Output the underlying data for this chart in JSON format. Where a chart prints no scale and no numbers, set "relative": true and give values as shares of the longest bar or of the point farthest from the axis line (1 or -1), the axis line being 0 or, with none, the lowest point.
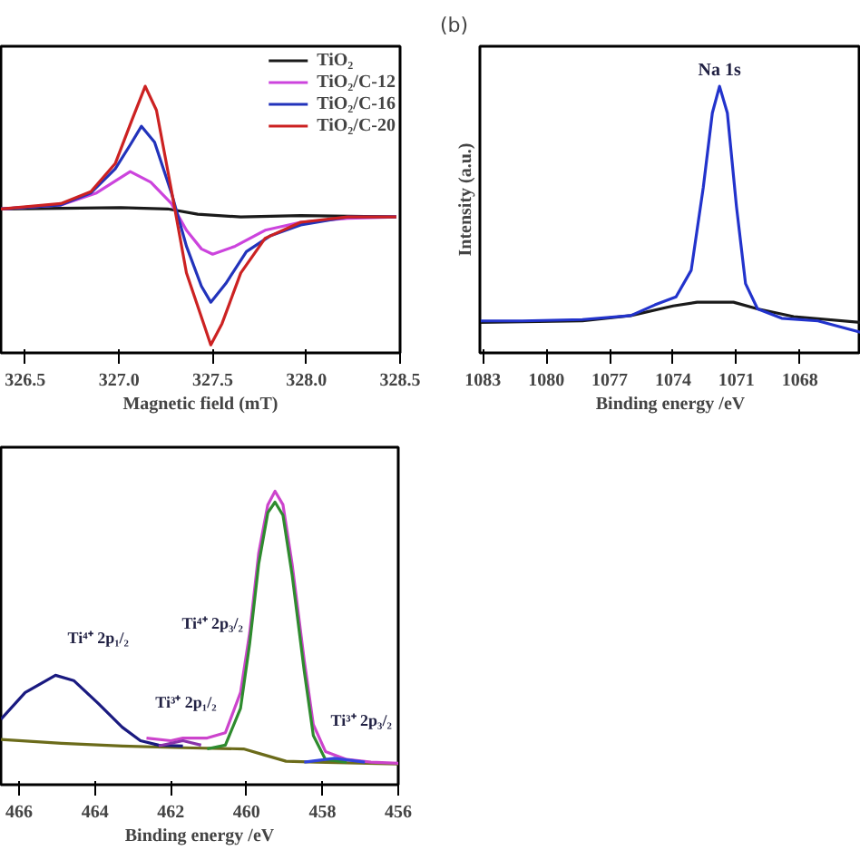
{
  "chart_data": [
    {
      "type": "line",
      "relative": true,
      "xlabel": "Magnetic field (mT)",
      "xlim": [
        326.37,
        328.5
      ],
      "xticks": [
        {
          "value": 326.5,
          "label": "326.5"
        },
        {
          "value": 327.0,
          "label": "327.0"
        },
        {
          "value": 327.5,
          "label": "327.5"
        },
        {
          "value": 328.0,
          "label": "328.0"
        },
        {
          "value": 328.5,
          "label": "328.5"
        }
      ],
      "grid": false,
      "legend": "top right",
      "line_style": "solid",
      "marker": "none",
      "series": [
        {
          "name": "TiO₂",
          "color": "#1a1a1a",
          "x": [
            326.37,
            327.01,
            327.26,
            327.42,
            327.65,
            327.97,
            328.48
          ],
          "values": [
            0.54,
            0.545,
            0.54,
            0.52,
            0.51,
            0.515,
            0.51
          ]
        },
        {
          "name": "TiO₂/C-12",
          "color": "#cc44dd",
          "x": [
            326.37,
            326.69,
            326.88,
            327.06,
            327.17,
            327.28,
            327.36,
            327.44,
            327.5,
            327.62,
            327.78,
            327.97,
            328.22,
            328.48
          ],
          "values": [
            0.54,
            0.555,
            0.6,
            0.68,
            0.64,
            0.56,
            0.46,
            0.39,
            0.37,
            0.4,
            0.46,
            0.49,
            0.505,
            0.51
          ]
        },
        {
          "name": "TiO₂/C-16",
          "color": "#2233bb",
          "x": [
            326.37,
            326.69,
            326.85,
            326.98,
            327.06,
            327.12,
            327.19,
            327.28,
            327.36,
            327.44,
            327.49,
            327.57,
            327.68,
            327.81,
            327.97,
            328.22,
            328.48
          ],
          "values": [
            0.54,
            0.555,
            0.6,
            0.69,
            0.78,
            0.85,
            0.79,
            0.6,
            0.4,
            0.25,
            0.19,
            0.26,
            0.38,
            0.44,
            0.48,
            0.51,
            0.51
          ]
        },
        {
          "name": "TiO₂/C-20",
          "color": "#cc2222",
          "x": [
            326.37,
            326.69,
            326.85,
            326.98,
            327.07,
            327.14,
            327.2,
            327.28,
            327.36,
            327.46,
            327.49,
            327.55,
            327.65,
            327.78,
            327.97,
            328.22,
            328.48
          ],
          "values": [
            0.54,
            0.56,
            0.605,
            0.71,
            0.875,
            1.0,
            0.91,
            0.61,
            0.3,
            0.093,
            0.03,
            0.11,
            0.3,
            0.43,
            0.49,
            0.51,
            0.51
          ]
        }
      ]
    },
    {
      "type": "line",
      "relative": true,
      "xlabel": "Binding energy /eV",
      "ylabel": "Intensity (a.u.)",
      "xlim": [
        1083.14,
        1065.11
      ],
      "xticks": [
        1083,
        1080,
        1077,
        1074,
        1071,
        1068
      ],
      "grid": false,
      "line_style": "solid",
      "marker": "none",
      "annotations": [
        "(b)",
        {
          "text": "Na 1s",
          "x": 1071.8,
          "y": 1.0
        }
      ],
      "series": [
        {
          "color": "#1a1a1a",
          "x": [
            1083.14,
            1078.29,
            1076.0,
            1074.0,
            1072.86,
            1071.14,
            1070.0,
            1068.29,
            1065.11
          ],
          "values": [
            0.114,
            0.12,
            0.14,
            0.176,
            0.19,
            0.19,
            0.165,
            0.136,
            0.114
          ]
        },
        {
          "color": "#2233cc",
          "x": [
            1083.14,
            1081.14,
            1078.29,
            1076.0,
            1074.86,
            1073.86,
            1073.14,
            1072.57,
            1072.14,
            1071.8,
            1071.43,
            1071.0,
            1070.57,
            1070.0,
            1068.86,
            1067.14,
            1065.11
          ],
          "values": [
            0.12,
            0.12,
            0.125,
            0.14,
            0.18,
            0.21,
            0.31,
            0.62,
            0.9,
            1.0,
            0.9,
            0.55,
            0.26,
            0.165,
            0.13,
            0.12,
            0.077
          ]
        }
      ]
    },
    {
      "type": "line",
      "relative": true,
      "xlabel": "Binding energy /eV",
      "xlim": [
        466.48,
        456.0
      ],
      "xticks": [
        466,
        464,
        462,
        460,
        458,
        456
      ],
      "grid": false,
      "line_style": "solid",
      "marker": "none",
      "annotations": [
        {
          "text": "Ti⁴⁺ 2p₁/₂",
          "x": 464.72,
          "y": 0.37
        },
        {
          "text": "Ti³⁺ 2p₁/₂",
          "x": 461.6,
          "y": 0.15
        },
        {
          "text": "Ti⁴⁺ 2p₃/₂",
          "x": 460.0,
          "y": 0.42
        },
        {
          "text": "Ti³⁺ 2p₃/₂",
          "x": 457.36,
          "y": 0.09
        }
      ],
      "series": [
        {
          "color": "#6b6b1a",
          "x": [
            466.48,
            464.88,
            463.28,
            461.68,
            460.08,
            459.6,
            458.96,
            458.16,
            456.0
          ],
          "values": [
            0.154,
            0.141,
            0.132,
            0.126,
            0.122,
            0.104,
            0.08,
            0.077,
            0.071
          ]
        },
        {
          "color": "#cc44cc",
          "x": [
            462.64,
            462.0,
            461.68,
            461.04,
            460.56,
            460.16,
            459.92,
            459.68,
            459.44,
            459.25,
            459.04,
            458.8,
            458.48,
            458.24,
            457.92,
            457.36,
            456.72,
            456.0
          ],
          "values": [
            0.159,
            0.15,
            0.159,
            0.159,
            0.177,
            0.314,
            0.516,
            0.79,
            0.954,
            1.0,
            0.954,
            0.753,
            0.424,
            0.205,
            0.113,
            0.086,
            0.077,
            0.073
          ]
        },
        {
          "color": "#1a1a80",
          "x": [
            466.48,
            465.84,
            465.04,
            464.56,
            463.92,
            463.28,
            462.8,
            462.32,
            461.68
          ],
          "values": [
            0.223,
            0.314,
            0.373,
            0.355,
            0.278,
            0.196,
            0.15,
            0.135,
            0.132
          ]
        },
        {
          "color": "#2e8b2e",
          "x": [
            461.04,
            460.56,
            460.16,
            459.92,
            459.68,
            459.44,
            459.25,
            459.04,
            458.8,
            458.48,
            458.24,
            457.92,
            457.36
          ],
          "values": [
            0.122,
            0.135,
            0.26,
            0.48,
            0.753,
            0.927,
            0.963,
            0.918,
            0.716,
            0.388,
            0.168,
            0.086,
            0.077
          ]
        },
        {
          "color": "#8833aa",
          "x": [
            462.32,
            461.68,
            461.2
          ],
          "values": [
            0.132,
            0.15,
            0.135
          ]
        },
        {
          "color": "#3344dd",
          "x": [
            458.48,
            457.68,
            456.88
          ],
          "values": [
            0.077,
            0.09,
            0.077
          ]
        }
      ]
    }
  ]
}
